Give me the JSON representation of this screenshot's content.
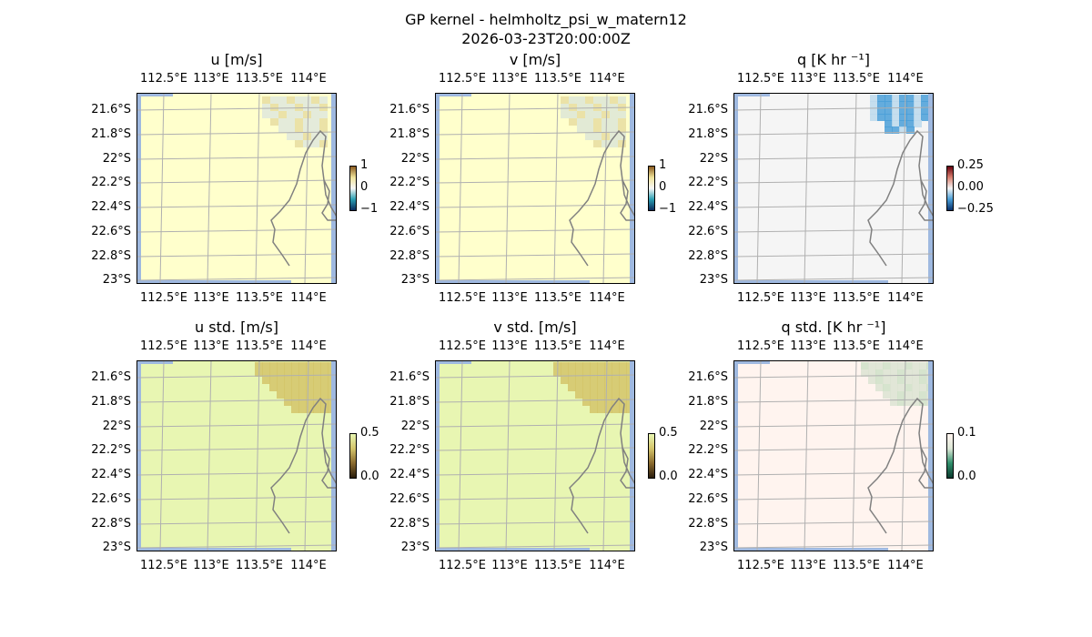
{
  "figure": {
    "title": "GP kernel - helmholtz_psi_w_matern12",
    "timestamp": "2026-03-23T20:00:00Z"
  },
  "chart_data": [
    {
      "type": "heatmap",
      "title": "u [m/s]",
      "map": "map",
      "xticks": [
        "112.5°E",
        "113°E",
        "113.5°E",
        "114°E"
      ],
      "yticks": [
        "21.6°S",
        "21.8°S",
        "22°S",
        "22.2°S",
        "22.4°S",
        "22.6°S",
        "22.8°S",
        "23°S"
      ],
      "colorbar": {
        "ticks": [
          "1",
          "0",
          "−1"
        ],
        "range": [
          -1,
          1
        ],
        "colors": [
          "#0b2a5b",
          "#2b9fb3",
          "#f7f7f7",
          "#efe39a",
          "#8a5a1f"
        ]
      },
      "field_colors": {
        "base": "#ffffcc",
        "patch": "#dfe8dc",
        "edge_patch": "#e8dda0"
      }
    },
    {
      "type": "heatmap",
      "title": "v [m/s]",
      "map": "map",
      "xticks": [
        "112.5°E",
        "113°E",
        "113.5°E",
        "114°E"
      ],
      "yticks": [
        "21.6°S",
        "21.8°S",
        "22°S",
        "22.2°S",
        "22.4°S",
        "22.6°S",
        "22.8°S",
        "23°S"
      ],
      "colorbar": {
        "ticks": [
          "1",
          "0",
          "−1"
        ],
        "range": [
          -1,
          1
        ],
        "colors": [
          "#0b2a5b",
          "#2b9fb3",
          "#f7f7f7",
          "#efe39a",
          "#8a5a1f"
        ]
      },
      "field_colors": {
        "base": "#ffffcc",
        "patch": "#dde6d6",
        "edge_patch": "#e8dda0"
      }
    },
    {
      "type": "heatmap",
      "title": "q [K hr ⁻¹]",
      "map": "map",
      "xticks": [
        "112.5°E",
        "113°E",
        "113.5°E",
        "114°E"
      ],
      "yticks": [
        "21.6°S",
        "21.8°S",
        "22°S",
        "22.2°S",
        "22.4°S",
        "22.6°S",
        "22.8°S",
        "23°S"
      ],
      "colorbar": {
        "ticks": [
          "0.25",
          "0.00",
          "−0.25"
        ],
        "range": [
          -0.25,
          0.25
        ],
        "colors": [
          "#08306b",
          "#4a9fd8",
          "#f5f5f5",
          "#d98070",
          "#67000d"
        ]
      },
      "field_colors": {
        "base": "#f5f5f5",
        "patch": "#4a9fd8",
        "edge_patch": "#bcd9ec"
      }
    },
    {
      "type": "heatmap",
      "title": "u std. [m/s]",
      "map": "map",
      "xticks": [
        "112.5°E",
        "113°E",
        "113.5°E",
        "114°E"
      ],
      "yticks": [
        "21.6°S",
        "21.8°S",
        "22°S",
        "22.2°S",
        "22.4°S",
        "22.6°S",
        "22.8°S",
        "23°S"
      ],
      "colorbar": {
        "ticks": [
          "0.5",
          "0.0"
        ],
        "range": [
          0,
          0.5
        ],
        "colors": [
          "#2a1d0c",
          "#8a6a2e",
          "#d4c46a",
          "#e8f6b2"
        ]
      },
      "field_colors": {
        "base": "#e8f6b2",
        "patch": "#d4c46a",
        "edge_patch": "#d4c46a"
      }
    },
    {
      "type": "heatmap",
      "title": "v std. [m/s]",
      "map": "map",
      "xticks": [
        "112.5°E",
        "113°E",
        "113.5°E",
        "114°E"
      ],
      "yticks": [
        "21.6°S",
        "21.8°S",
        "22°S",
        "22.2°S",
        "22.4°S",
        "22.6°S",
        "22.8°S",
        "23°S"
      ],
      "colorbar": {
        "ticks": [
          "0.5",
          "0.0"
        ],
        "range": [
          0,
          0.5
        ],
        "colors": [
          "#2a1d0c",
          "#8a6a2e",
          "#d4c46a",
          "#e8f6b2"
        ]
      },
      "field_colors": {
        "base": "#e8f6b2",
        "patch": "#d4c46a",
        "edge_patch": "#d4c46a"
      }
    },
    {
      "type": "heatmap",
      "title": "q std. [K hr ⁻¹]",
      "map": "map",
      "xticks": [
        "112.5°E",
        "113°E",
        "113.5°E",
        "114°E"
      ],
      "yticks": [
        "21.6°S",
        "21.8°S",
        "22°S",
        "22.2°S",
        "22.4°S",
        "22.6°S",
        "22.8°S",
        "23°S"
      ],
      "colorbar": {
        "ticks": [
          "0.1",
          "0.0"
        ],
        "range": [
          0,
          0.1
        ],
        "colors": [
          "#0b3b2e",
          "#2f8f6b",
          "#dce7d6",
          "#fff4ef"
        ]
      },
      "field_colors": {
        "base": "#fff4ef",
        "patch": "#dce3d2",
        "edge_patch": "#cfe0c8"
      }
    }
  ],
  "colors": {
    "ocean": "#9fb9e0",
    "gridline": "#b0b0b0",
    "coastline": "#808080"
  }
}
